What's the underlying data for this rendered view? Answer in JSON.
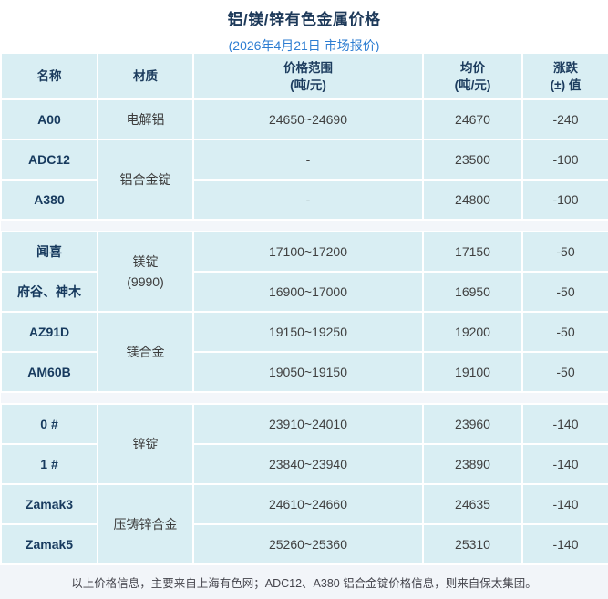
{
  "title": "铝/镁/锌有色金属价格",
  "subtitle": "(2026年4月21日 市场报价)",
  "colors": {
    "title_navy": "#1e3a5a",
    "subtitle_blue": "#2d7dd2",
    "cell_bg": "#d9eef3",
    "separator_bg": "#f3f6fa",
    "footer_bg": "#f2f5f9",
    "border": "#ffffff"
  },
  "table": {
    "header": {
      "name": "名称",
      "material": "材质",
      "range_line1": "价格范围",
      "range_line2": "(吨/元)",
      "avg_line1": "均价",
      "avg_line2": "(吨/元)",
      "change_line1": "涨跌",
      "change_line2": "(±) 值"
    },
    "sections": [
      {
        "metal": "aluminum",
        "rows": [
          {
            "name": "A00",
            "mat": "电解铝",
            "range": "24650~24690",
            "avg": "24670",
            "chg": "-240"
          },
          {
            "name": "ADC12",
            "mat": "铝合金锭",
            "range": "-",
            "avg": "23500",
            "chg": "-100"
          },
          {
            "name": "A380",
            "range": "-",
            "avg": "24800",
            "chg": "-100"
          }
        ]
      },
      {
        "metal": "magnesium",
        "rows": [
          {
            "name": "闻喜",
            "mat": "镁锭",
            "mat2": "(9990)",
            "range": "17100~17200",
            "avg": "17150",
            "chg": "-50"
          },
          {
            "name": "府谷、神木",
            "range": "16900~17000",
            "avg": "16950",
            "chg": "-50"
          },
          {
            "name": "AZ91D",
            "mat": "镁合金",
            "range": "19150~19250",
            "avg": "19200",
            "chg": "-50"
          },
          {
            "name": "AM60B",
            "range": "19050~19150",
            "avg": "19100",
            "chg": "-50"
          }
        ]
      },
      {
        "metal": "zinc",
        "rows": [
          {
            "name": "0 #",
            "mat": "锌锭",
            "range": "23910~24010",
            "avg": "23960",
            "chg": "-140"
          },
          {
            "name": "1 #",
            "range": "23840~23940",
            "avg": "23890",
            "chg": "-140"
          },
          {
            "name": "Zamak3",
            "mat": "压铸锌合金",
            "range": "24610~24660",
            "avg": "24635",
            "chg": "-140"
          },
          {
            "name": "Zamak5",
            "range": "25260~25360",
            "avg": "25310",
            "chg": "-140"
          }
        ]
      }
    ]
  },
  "footer": "以上价格信息，主要来自上海有色网；ADC12、A380 铝合金锭价格信息，则来自保太集团。"
}
